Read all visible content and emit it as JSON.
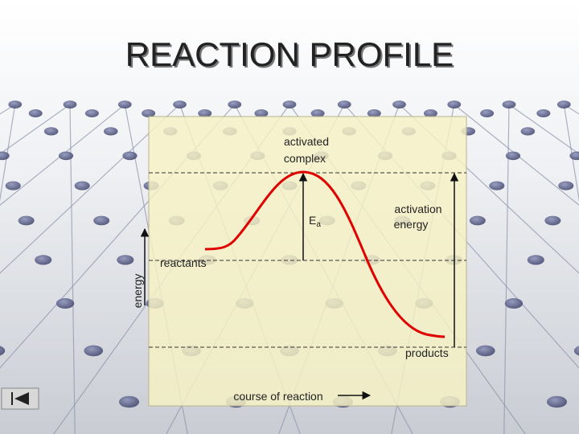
{
  "title": "REACTION PROFILE",
  "diagram": {
    "activated_complex": [
      "activated",
      "complex"
    ],
    "ea": {
      "symbol": "E",
      "subscript": "a"
    },
    "activation_energy": [
      "activation",
      "energy"
    ],
    "reactants": "reactants",
    "products": "products",
    "y_axis": "energy",
    "x_axis": "course of reaction"
  }
}
